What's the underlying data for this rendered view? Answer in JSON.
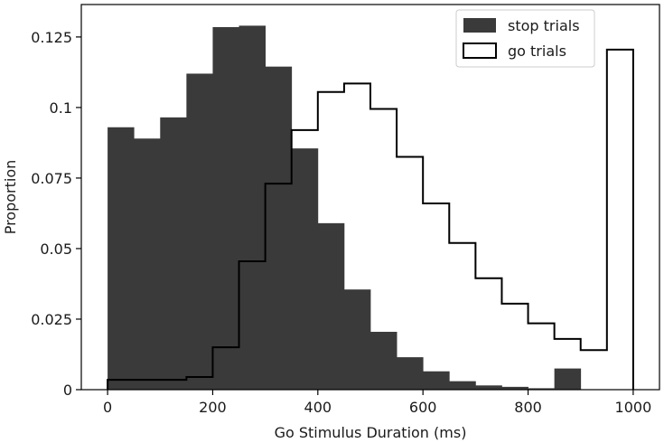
{
  "chart_data": {
    "type": "bar",
    "title": "",
    "xlabel": "Go Stimulus Duration (ms)",
    "ylabel": "Proportion",
    "xlim": [
      -50,
      1050
    ],
    "ylim": [
      0,
      0.1365
    ],
    "grid": false,
    "legend_position": "top-right",
    "bin_edges": [
      0,
      50,
      100,
      150,
      200,
      250,
      300,
      350,
      400,
      450,
      500,
      550,
      600,
      650,
      700,
      750,
      800,
      850,
      900,
      950,
      1000
    ],
    "x_ticks": [
      0,
      200,
      400,
      600,
      800,
      1000
    ],
    "x_tick_labels": [
      "0",
      "200",
      "400",
      "600",
      "800",
      "1000"
    ],
    "y_ticks": [
      0,
      0.025,
      0.05,
      0.075,
      0.1,
      0.125
    ],
    "y_tick_labels": [
      "0",
      "0.025",
      "0.05",
      "0.075",
      "0.1",
      "0.125"
    ],
    "series": [
      {
        "name": "stop trials",
        "style": "filled",
        "color": "#3a3a3a",
        "values": [
          0.093,
          0.089,
          0.0965,
          0.112,
          0.1285,
          0.129,
          0.1145,
          0.0855,
          0.059,
          0.0355,
          0.0205,
          0.0115,
          0.0065,
          0.003,
          0.0015,
          0.001,
          0.0005,
          0.0075,
          0,
          0
        ]
      },
      {
        "name": "go trials",
        "style": "step-outline",
        "color": "#000000",
        "values": [
          0.0035,
          0.0035,
          0.0035,
          0.0045,
          0.015,
          0.0455,
          0.073,
          0.092,
          0.1055,
          0.1085,
          0.0995,
          0.0825,
          0.066,
          0.052,
          0.0395,
          0.0305,
          0.0235,
          0.018,
          0.014,
          0.1205
        ]
      }
    ]
  }
}
